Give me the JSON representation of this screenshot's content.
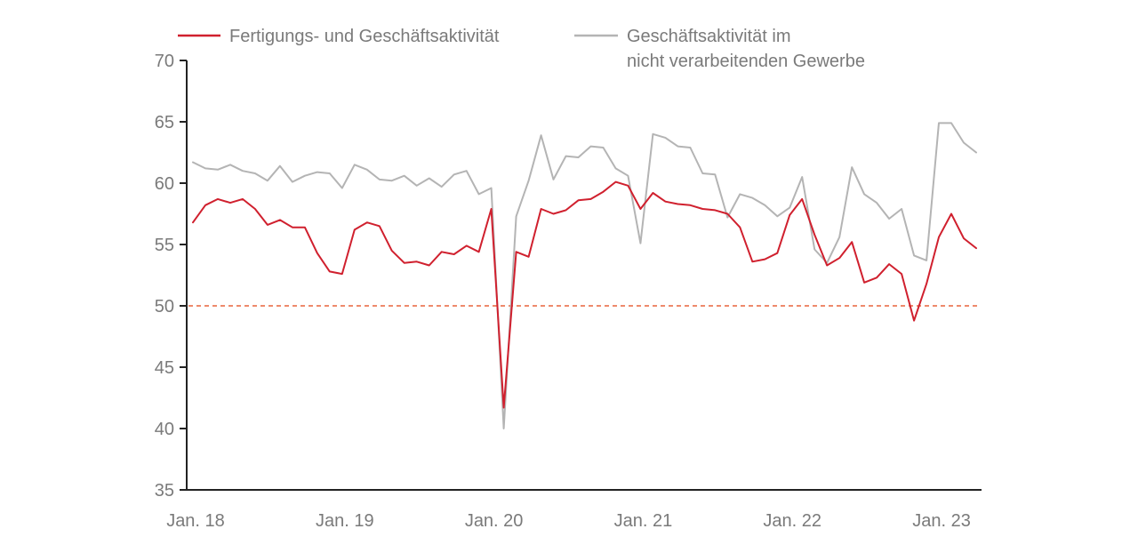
{
  "chart_data": {
    "type": "line",
    "title": "",
    "xlabel": "",
    "ylabel": "",
    "ylim": [
      35,
      70
    ],
    "yticks": [
      35,
      40,
      45,
      50,
      55,
      60,
      65,
      70
    ],
    "xtick_labels": [
      "Jan. 18",
      "Jan. 19",
      "Jan. 20",
      "Jan. 21",
      "Jan. 22",
      "Jan. 23"
    ],
    "x_start": "2018-01",
    "x_end": "2023-05",
    "reference_line": {
      "value": 50,
      "color": "#e8643c",
      "style": "dashed"
    },
    "legend_position": "top",
    "grid": false,
    "series": [
      {
        "name": "Fertigungs- und Geschäftsaktivität",
        "color": "#d0202e",
        "values": [
          56.8,
          58.2,
          58.7,
          58.4,
          58.7,
          57.9,
          56.6,
          57.0,
          56.4,
          56.4,
          54.3,
          52.8,
          52.6,
          56.2,
          56.8,
          56.5,
          54.5,
          53.5,
          53.6,
          53.3,
          54.4,
          54.2,
          54.9,
          54.4,
          57.9,
          41.7,
          54.4,
          54.0,
          57.9,
          57.5,
          57.8,
          58.6,
          58.7,
          59.3,
          60.1,
          59.8,
          57.9,
          59.2,
          58.5,
          58.3,
          58.2,
          57.9,
          57.8,
          57.5,
          56.4,
          53.6,
          53.8,
          54.3,
          57.4,
          58.7,
          55.8,
          53.3,
          53.9,
          55.2,
          51.9,
          52.3,
          53.4,
          52.6,
          48.8,
          51.8,
          55.6,
          57.5,
          55.5,
          54.7
        ]
      },
      {
        "name": "Geschäftsaktivität im nicht verarbeitenden Gewerbe",
        "legend_lines": [
          "Geschäftsaktivität im",
          "nicht verarbeitenden Gewerbe"
        ],
        "color": "#b4b4b4",
        "values": [
          61.7,
          61.2,
          61.1,
          61.5,
          61.0,
          60.8,
          60.2,
          61.4,
          60.1,
          60.6,
          60.9,
          60.8,
          59.6,
          61.5,
          61.1,
          60.3,
          60.2,
          60.6,
          59.8,
          60.4,
          59.7,
          60.7,
          61.0,
          59.1,
          59.6,
          40.0,
          57.3,
          60.2,
          63.9,
          60.3,
          62.2,
          62.1,
          63.0,
          62.9,
          61.2,
          60.6,
          55.1,
          64.0,
          63.7,
          63.0,
          62.9,
          60.8,
          60.7,
          57.2,
          59.1,
          58.8,
          58.2,
          57.3,
          58.0,
          60.5,
          54.6,
          53.5,
          55.6,
          61.3,
          59.1,
          58.4,
          57.1,
          57.9,
          54.1,
          53.7,
          64.9,
          64.9,
          63.3,
          62.5
        ]
      }
    ]
  }
}
